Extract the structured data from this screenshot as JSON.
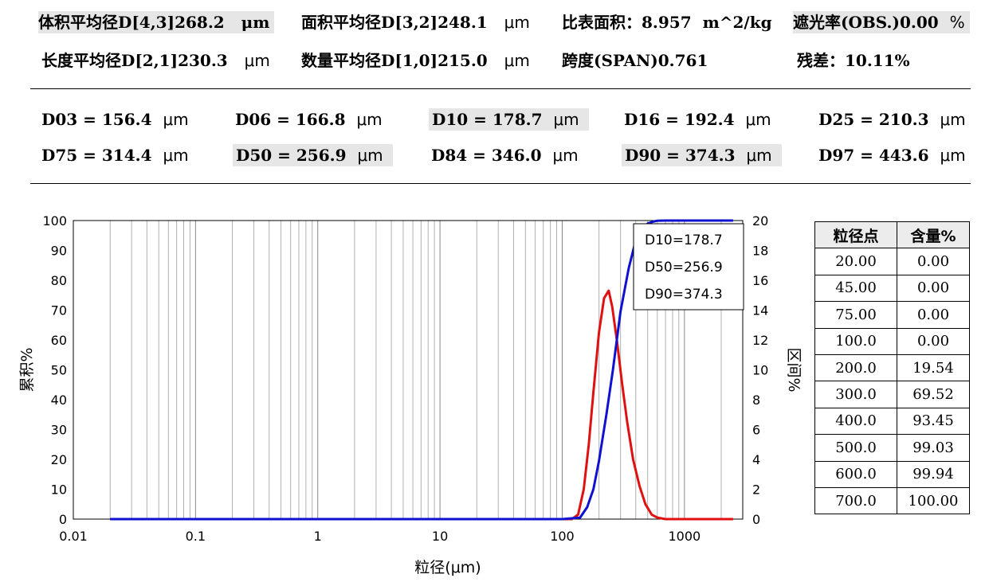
{
  "summary": {
    "row1": [
      {
        "label": "体积平均径D[4,3]",
        "value": "268.2",
        "unit": "μm"
      },
      {
        "label": "面积平均径D[3,2]",
        "value": "248.1",
        "unit": "μm"
      },
      {
        "label": "比表面积：",
        "value": "8.957",
        "unit": "m^2/kg"
      },
      {
        "label": "遮光率(OBS.)",
        "value": "0.00",
        "unit": "%"
      }
    ],
    "row2": [
      {
        "label": "长度平均径D[2,1]",
        "value": "230.3",
        "unit": "μm"
      },
      {
        "label": "数量平均径D[1,0]",
        "value": "215.0",
        "unit": "μm"
      },
      {
        "label": "跨度(SPAN)",
        "value": "0.761",
        "unit": ""
      },
      {
        "label": "残差：",
        "value": "10.11",
        "unit": "%"
      }
    ]
  },
  "d_values": {
    "row1": [
      {
        "label": "D03 = 156.4",
        "unit": "μm"
      },
      {
        "label": "D06 = 166.8",
        "unit": "μm"
      },
      {
        "label": "D10 = 178.7",
        "unit": "μm"
      },
      {
        "label": "D16 = 192.4",
        "unit": "μm"
      },
      {
        "label": "D25 = 210.3",
        "unit": "μm"
      }
    ],
    "row2": [
      {
        "label": "D75 = 314.4",
        "unit": "μm"
      },
      {
        "label": "D50 = 256.9",
        "unit": "μm"
      },
      {
        "label": "D84 = 346.0",
        "unit": "μm"
      },
      {
        "label": "D90 = 374.3",
        "unit": "μm"
      },
      {
        "label": "D97 = 443.6",
        "unit": "μm"
      }
    ]
  },
  "colors": {
    "cumulative": "#1010d0",
    "interval": "#e01010",
    "highlight": "#e6e6e6"
  },
  "chart_data": {
    "type": "line",
    "xlabel": "粒径(μm)",
    "ylabel_left": "累积%",
    "ylabel_right": "区间%",
    "x_scale": "log",
    "xlim": [
      0.01,
      3000
    ],
    "ylim_left": [
      0,
      100
    ],
    "ylim_right": [
      0,
      20
    ],
    "x_tick_labels": [
      "0.01",
      "0.1",
      "1",
      "10",
      "100",
      "1000"
    ],
    "y_left_tick_labels": [
      "0",
      "10",
      "20",
      "30",
      "40",
      "50",
      "60",
      "70",
      "80",
      "90",
      "100"
    ],
    "y_right_tick_labels": [
      "0",
      "2",
      "4",
      "6",
      "8",
      "10",
      "12",
      "14",
      "16",
      "18",
      "20"
    ],
    "grid": true,
    "annotation": [
      "D10=178.7",
      "D50=256.9",
      "D90=374.3"
    ],
    "annotation_position": "top-right",
    "series": [
      {
        "name": "累积%",
        "axis": "left",
        "x": [
          0.02,
          100,
          140,
          160,
          180,
          200,
          230,
          260,
          300,
          350,
          400,
          450,
          500,
          550,
          600,
          700,
          1000,
          2500
        ],
        "y": [
          0,
          0,
          0.5,
          4,
          10,
          19.5,
          35,
          50,
          69.5,
          84,
          93.5,
          97.5,
          99,
          99.6,
          99.94,
          100,
          100,
          100
        ]
      },
      {
        "name": "区间%",
        "axis": "right",
        "x": [
          0.02,
          100,
          120,
          135,
          150,
          165,
          180,
          200,
          220,
          240,
          257,
          280,
          310,
          340,
          380,
          430,
          480,
          540,
          600,
          700,
          900,
          2500
        ],
        "y": [
          0,
          0,
          0,
          0.3,
          2.0,
          5.0,
          8.5,
          12.5,
          14.8,
          15.3,
          14.2,
          12.0,
          9.0,
          6.5,
          4.0,
          2.2,
          1.0,
          0.3,
          0.1,
          0,
          0,
          0
        ]
      }
    ]
  },
  "table": {
    "headers": [
      "粒径点",
      "含量%"
    ],
    "rows": [
      [
        "20.00",
        "0.00"
      ],
      [
        "45.00",
        "0.00"
      ],
      [
        "75.00",
        "0.00"
      ],
      [
        "100.0",
        "0.00"
      ],
      [
        "200.0",
        "19.54"
      ],
      [
        "300.0",
        "69.52"
      ],
      [
        "400.0",
        "93.45"
      ],
      [
        "500.0",
        "99.03"
      ],
      [
        "600.0",
        "99.94"
      ],
      [
        "700.0",
        "100.00"
      ]
    ]
  }
}
